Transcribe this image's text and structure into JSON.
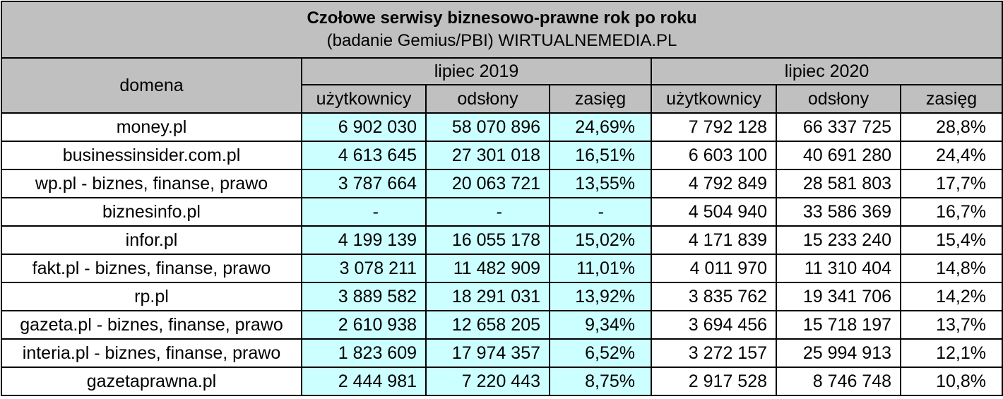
{
  "chart_data": {
    "type": "table",
    "title": "Czołowe serwisy biznesowo-prawne rok po roku",
    "subtitle": "(badanie Gemius/PBI) WIRTUALNEMEDIA.PL",
    "domain_header": "domena",
    "periods": [
      "lipiec 2019",
      "lipiec 2020"
    ],
    "columns": [
      "użytkownicy",
      "odsłony",
      "zasięg"
    ],
    "rows": [
      {
        "domain": "money.pl",
        "y2019": [
          "6 902 030",
          "58 070 896",
          "24,69%"
        ],
        "y2020": [
          "7 792 128",
          "66 337 725",
          "28,8%"
        ]
      },
      {
        "domain": "businessinsider.com.pl",
        "y2019": [
          "4 613 645",
          "27 301 018",
          "16,51%"
        ],
        "y2020": [
          "6 603 100",
          "40 691 280",
          "24,4%"
        ]
      },
      {
        "domain": "wp.pl - biznes, finanse, prawo",
        "y2019": [
          "3 787 664",
          "20 063 721",
          "13,55%"
        ],
        "y2020": [
          "4 792 849",
          "28 581 803",
          "17,7%"
        ]
      },
      {
        "domain": "biznesinfo.pl",
        "y2019": [
          "-",
          "-",
          "-"
        ],
        "y2020": [
          "4 504 940",
          "33 586 369",
          "16,7%"
        ]
      },
      {
        "domain": "infor.pl",
        "y2019": [
          "4 199 139",
          "16 055 178",
          "15,02%"
        ],
        "y2020": [
          "4 171 839",
          "15 233 240",
          "15,4%"
        ]
      },
      {
        "domain": "fakt.pl - biznes, finanse, prawo",
        "y2019": [
          "3 078 211",
          "11 482 909",
          "11,01%"
        ],
        "y2020": [
          "4 011 970",
          "11 310 404",
          "14,8%"
        ]
      },
      {
        "domain": "rp.pl",
        "y2019": [
          "3 889 582",
          "18 291 031",
          "13,92%"
        ],
        "y2020": [
          "3 835 762",
          "19 341 706",
          "14,2%"
        ]
      },
      {
        "domain": "gazeta.pl - biznes, finanse, prawo",
        "y2019": [
          "2 610 938",
          "12 658 205",
          "9,34%"
        ],
        "y2020": [
          "3 694 456",
          "15 718 197",
          "13,7%"
        ]
      },
      {
        "domain": "interia.pl - biznes, finanse, prawo",
        "y2019": [
          "1 823 609",
          "17 974 357",
          "6,52%"
        ],
        "y2020": [
          "3 272 157",
          "25 994 913",
          "12,1%"
        ]
      },
      {
        "domain": "gazetaprawna.pl",
        "y2019": [
          "2 444 981",
          "7 220 443",
          "8,75%"
        ],
        "y2020": [
          "2 917 528",
          "8 746 748",
          "10,8%"
        ]
      }
    ]
  }
}
